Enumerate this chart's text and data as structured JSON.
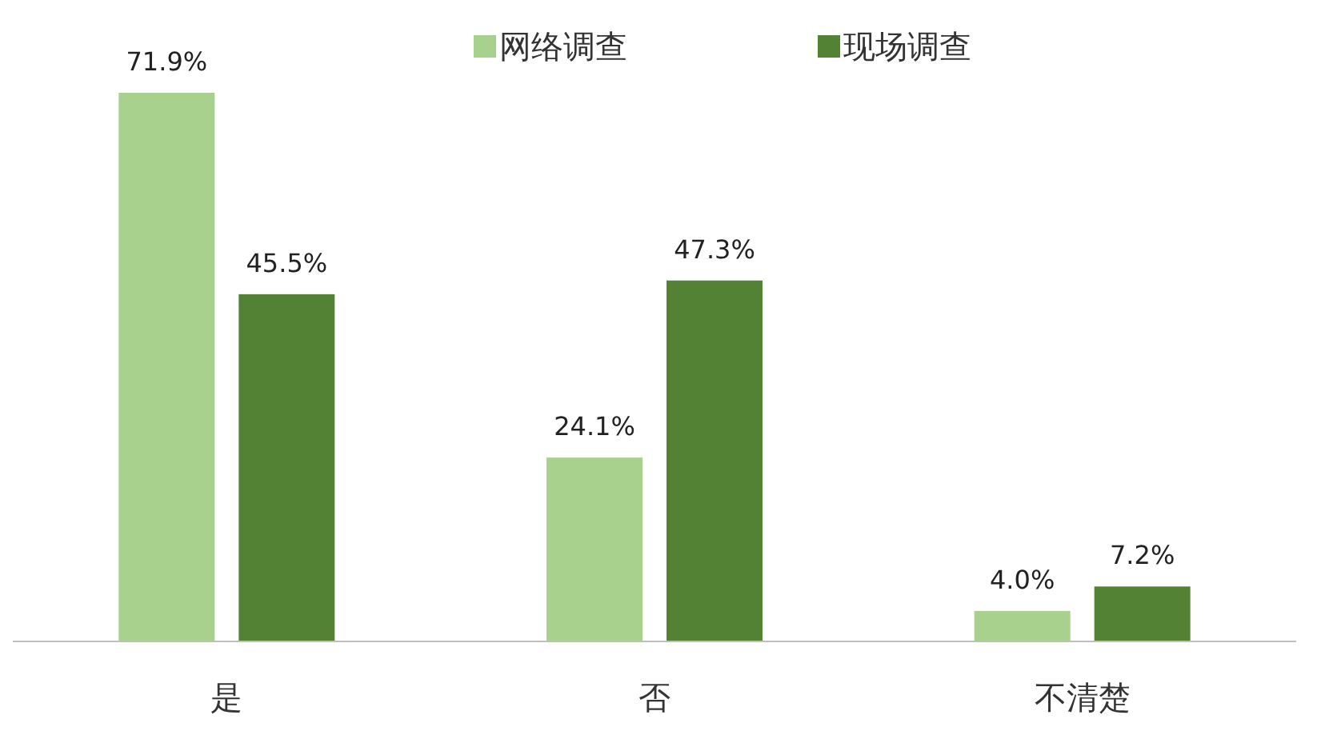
{
  "chart_data": {
    "type": "bar",
    "categories": [
      "是",
      "否",
      "不清楚"
    ],
    "series": [
      {
        "name": "网络调查",
        "color": "#a9d18e",
        "values": [
          71.9,
          24.1,
          4.0
        ],
        "value_labels": [
          "71.9%",
          "24.1%",
          "4.0%"
        ]
      },
      {
        "name": "现场调查",
        "color": "#548235",
        "values": [
          45.5,
          47.3,
          7.2
        ],
        "value_labels": [
          "45.5%",
          "47.3%",
          "7.2%"
        ]
      }
    ],
    "legend": "top"
  }
}
